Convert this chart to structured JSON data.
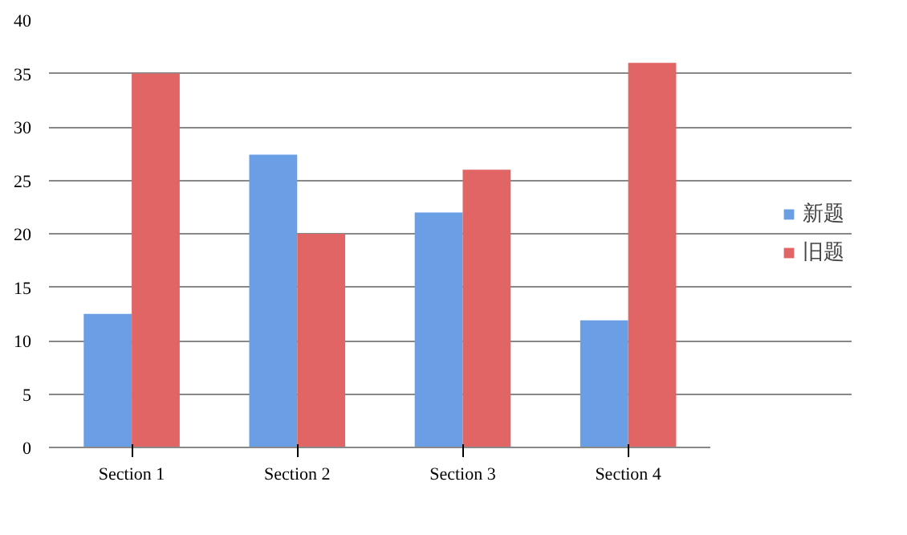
{
  "chart_data": {
    "type": "bar",
    "categories": [
      "Section 1",
      "Section 2",
      "Section 3",
      "Section 4"
    ],
    "series": [
      {
        "name": "新题",
        "color": "#6a9fe6",
        "values": [
          12.5,
          27.4,
          22,
          11.9
        ]
      },
      {
        "name": "旧题",
        "color": "#e26565",
        "values": [
          35,
          20,
          26,
          36
        ]
      }
    ],
    "ylim": [
      0,
      40
    ],
    "yticks": [
      0,
      5,
      10,
      15,
      20,
      25,
      30,
      35,
      40
    ],
    "grid": "y",
    "legend": "right"
  }
}
